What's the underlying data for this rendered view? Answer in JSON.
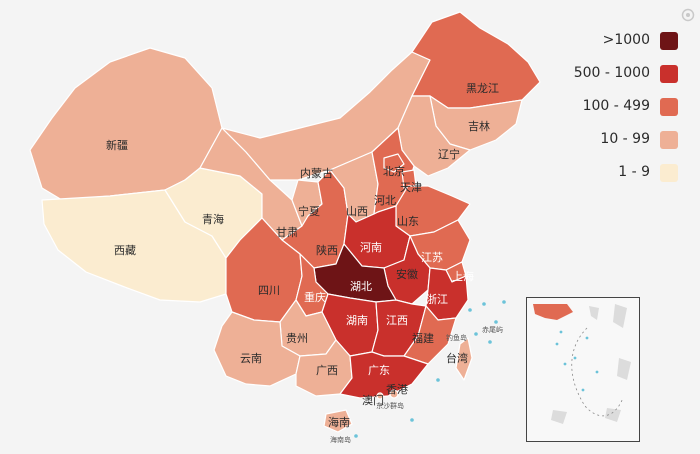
{
  "legend": {
    "items": [
      {
        "label": ">1000",
        "color": "#6e1416"
      },
      {
        "label": "500 - 1000",
        "color": "#c9302c"
      },
      {
        "label": "100 - 499",
        "color": "#e06a52"
      },
      {
        "label": "10 - 99",
        "color": "#eeb096"
      },
      {
        "label": "1 - 9",
        "color": "#fbecd0"
      }
    ]
  },
  "colors": {
    "bucket_1000": "#6e1416",
    "bucket_500": "#c9302c",
    "bucket_100": "#e06a52",
    "bucket_10": "#eeb096",
    "bucket_1": "#fbecd0",
    "sea": "#f4f4f4",
    "island_marker": "#6cc3d9"
  },
  "provinces": {
    "heilongjiang": "黑龙江",
    "jilin": "吉林",
    "liaoning": "辽宁",
    "inner_mongolia": "内蒙古",
    "beijing": "北京",
    "tianjin": "天津",
    "hebei": "河北",
    "shanxi": "山西",
    "shandong": "山东",
    "xinjiang": "新疆",
    "qinghai": "青海",
    "gansu": "甘肃",
    "ningxia": "宁夏",
    "shaanxi": "陕西",
    "henan": "河南",
    "jiangsu": "江苏",
    "anhui": "安徽",
    "shanghai": "上海",
    "hubei": "湖北",
    "zhejiang": "浙江",
    "xizang": "西藏",
    "sichuan": "四川",
    "chongqing": "重庆",
    "hunan": "湖南",
    "jiangxi": "江西",
    "fujian": "福建",
    "guizhou": "贵州",
    "yunnan": "云南",
    "guangxi": "广西",
    "guangdong": "广东",
    "taiwan": "台湾",
    "hongkong": "香港",
    "macau": "澳门",
    "hainan": "海南"
  },
  "sea_labels": {
    "dongsha": "东沙群岛",
    "diaoyu": "钓鱼岛",
    "chiwei": "赤尾屿",
    "hainan_dao": "海南岛"
  }
}
